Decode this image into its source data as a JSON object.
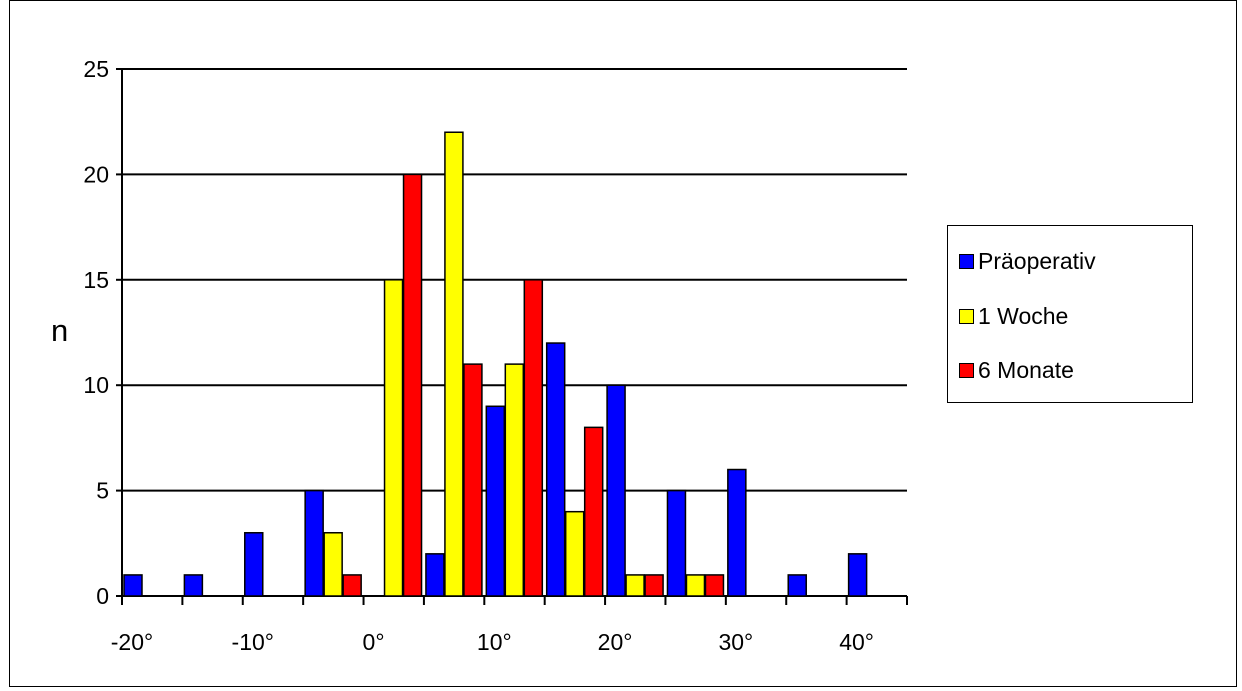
{
  "chart_data": {
    "type": "bar",
    "categories": [
      "-20°",
      "",
      "-10°",
      "",
      "0°",
      "",
      "10°",
      "",
      "20°",
      "",
      "30°",
      "",
      "40°"
    ],
    "series": [
      {
        "name": "Präoperativ",
        "color": "#0000FF",
        "values": [
          1,
          1,
          3,
          5,
          0,
          2,
          9,
          12,
          10,
          5,
          6,
          1,
          2
        ]
      },
      {
        "name": "1 Woche",
        "color": "#FFFF00",
        "values": [
          0,
          0,
          0,
          3,
          15,
          22,
          11,
          4,
          1,
          1,
          0,
          0,
          0
        ]
      },
      {
        "name": "6 Monate",
        "color": "#FF0000",
        "values": [
          0,
          0,
          0,
          1,
          20,
          11,
          15,
          8,
          1,
          1,
          0,
          0,
          0
        ]
      }
    ],
    "ylabel": "n",
    "xlabel": "",
    "ylim": [
      0,
      25
    ],
    "yticks": [
      0,
      5,
      10,
      15,
      20,
      25
    ],
    "grid": true,
    "legend_position": "right"
  }
}
